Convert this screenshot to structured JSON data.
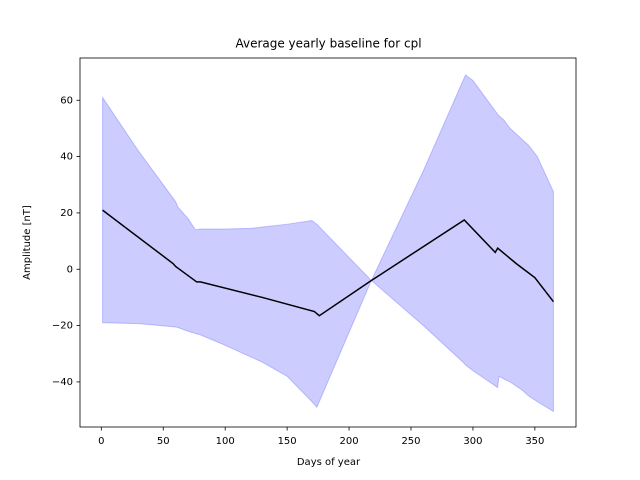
{
  "chart_data": {
    "type": "line-band",
    "title": "Average yearly baseline for cpl",
    "x_label": "Days of year",
    "y_label": "Amplitude [nT]",
    "xlim": [
      -17.2,
      383.2
    ],
    "ylim": [
      -56,
      75
    ],
    "xticks": [
      0,
      50,
      100,
      150,
      200,
      250,
      300,
      350
    ],
    "yticks": [
      {
        "value": -40,
        "label": "−40"
      },
      {
        "value": -20,
        "label": "−20"
      },
      0,
      20,
      40,
      60
    ],
    "line": {
      "color": "#000000",
      "x": [
        1,
        58,
        60,
        77,
        80,
        130,
        172,
        176,
        218,
        293,
        318,
        320,
        335,
        350,
        365
      ],
      "values": [
        21,
        2,
        1,
        -4.5,
        -4.5,
        -10,
        -15,
        -16.5,
        -4,
        17.5,
        6,
        7.5,
        2,
        -3,
        -11.5
      ]
    },
    "band": {
      "color": "#0000ff",
      "x": [
        1,
        30,
        60,
        62,
        70,
        76,
        80,
        100,
        120,
        130,
        150,
        170,
        174,
        218,
        260,
        292,
        294,
        300,
        310,
        320,
        321,
        325,
        330,
        340,
        345,
        352,
        365
      ],
      "upper": [
        61,
        42,
        24,
        22,
        18,
        14,
        14.3,
        14.3,
        14.5,
        15,
        16,
        17.3,
        16,
        -4,
        35,
        67,
        69,
        67,
        61,
        55,
        54.5,
        53,
        50,
        46,
        44,
        40,
        27.5
      ],
      "lower": [
        -19,
        -19.3,
        -20.5,
        -20.7,
        -22,
        -22.8,
        -23.3,
        -27,
        -31,
        -33,
        -38,
        -47,
        -49,
        -4,
        -20,
        -33,
        -34,
        -36,
        -39,
        -42,
        -38,
        -39,
        -40,
        -43,
        -45,
        -47,
        -50.5
      ]
    }
  }
}
